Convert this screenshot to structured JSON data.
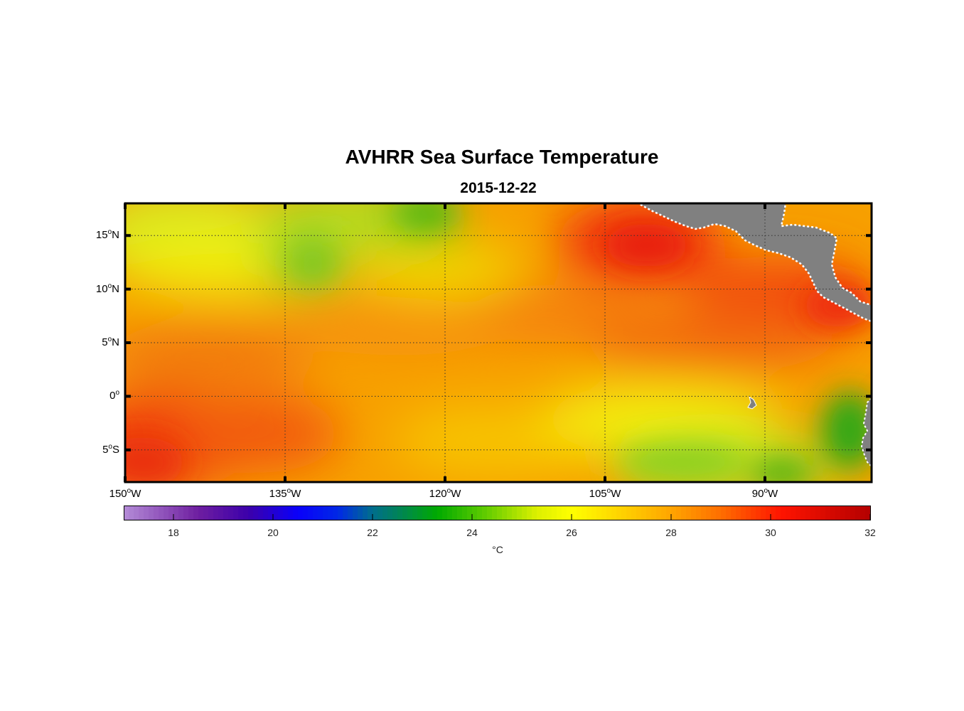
{
  "title": "AVHRR Sea Surface Temperature",
  "subtitle": "2015-12-22",
  "map": {
    "lon_range": [
      -150,
      -80
    ],
    "lat_range": [
      -8,
      18
    ],
    "land_color": "#808080",
    "lat_ticks": [
      {
        "value": 15,
        "num": "15",
        "hemi": "N"
      },
      {
        "value": 10,
        "num": "10",
        "hemi": "N"
      },
      {
        "value": 5,
        "num": "5",
        "hemi": "N"
      },
      {
        "value": 0,
        "num": "0",
        "hemi": ""
      },
      {
        "value": -5,
        "num": "5",
        "hemi": "S"
      }
    ],
    "lon_ticks": [
      {
        "value": -150,
        "num": "150",
        "hemi": "W"
      },
      {
        "value": -135,
        "num": "135",
        "hemi": "W"
      },
      {
        "value": -120,
        "num": "120",
        "hemi": "W"
      },
      {
        "value": -105,
        "num": "105",
        "hemi": "W"
      },
      {
        "value": -90,
        "num": "90",
        "hemi": "W"
      }
    ]
  },
  "colorbar": {
    "range": [
      17,
      32
    ],
    "ticks": [
      "18",
      "20",
      "22",
      "24",
      "26",
      "28",
      "30",
      "32"
    ],
    "unit": "°C"
  }
}
